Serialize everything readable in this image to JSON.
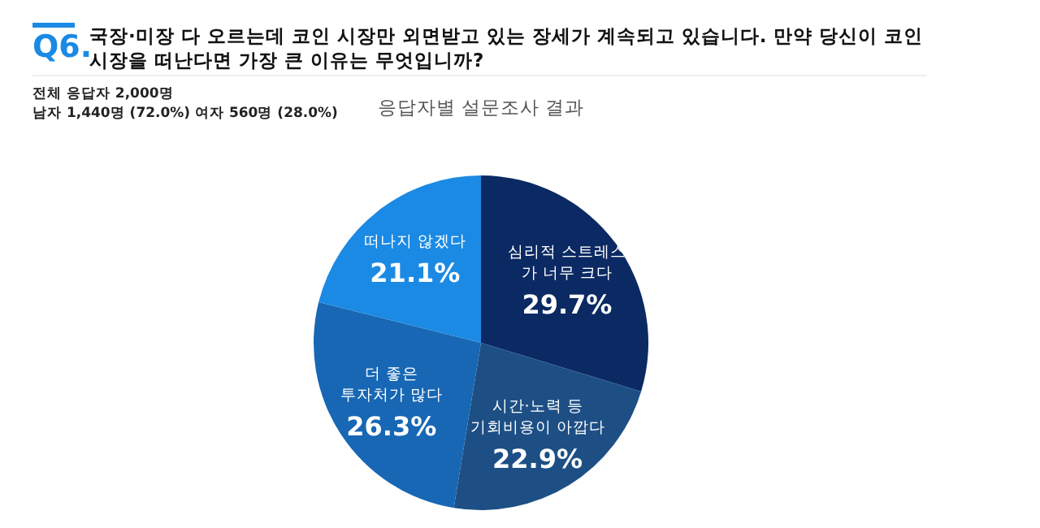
{
  "chart_data": {
    "type": "pie",
    "title": "국장·미장 다 오르는데 코인 시장만 외면받고 있는 장세가 계속되고 있습니다. 만약 당신이 코인 시장을 떠난다면 가장 큰 이유는 무엇입니까?",
    "subtitle": "응답자별 설문조사 결과",
    "annotations": [
      "Q6.",
      "전체 응답자 2,000명",
      "남자 1,440명 (72.0%) 여자 560명 (28.0%)"
    ],
    "categories": [
      "심리적 스트레스\n가 너무 크다",
      "시간·노력 등\n기회비용이 아깝다",
      "더 좋은\n투자처가 많다",
      "떠나지 않겠다"
    ],
    "values": [
      29.7,
      22.9,
      26.3,
      21.1
    ],
    "colors": [
      "#0b2a63",
      "#1d4f85",
      "#1767b4",
      "#1b8ae4"
    ],
    "value_labels": [
      "29.7%",
      "22.9%",
      "26.3%",
      "21.1%"
    ],
    "legend": false
  }
}
